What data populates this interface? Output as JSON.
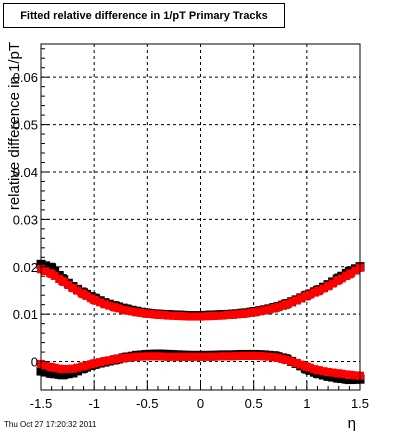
{
  "title": "Fitted relative difference in 1/pT  Primary Tracks",
  "timestamp": "Thu Oct 27 17:20:32 2011",
  "chart_data": {
    "type": "scatter",
    "title": "Fitted relative difference in 1/pT  Primary Tracks",
    "xlabel": "η",
    "ylabel": "relative difference in 1/pT",
    "xlim": [
      -1.5,
      1.5
    ],
    "ylim": [
      -0.006,
      0.067
    ],
    "grid": true,
    "x_ticks": [
      -1.5,
      -1,
      -0.5,
      0,
      0.5,
      1,
      1.5
    ],
    "x_tick_labels": [
      "-1.5",
      "-1",
      "-0.5",
      "0",
      "0.5",
      "1",
      "1.5"
    ],
    "y_ticks": [
      0,
      0.01,
      0.02,
      0.03,
      0.04,
      0.05,
      0.06
    ],
    "y_tick_labels": [
      "0",
      "0.01",
      "0.02",
      "0.03",
      "0.04",
      "0.05",
      "0.06"
    ],
    "series": [
      {
        "color": "#000000",
        "x": [
          -1.5,
          -1.4,
          -1.3,
          -1.2,
          -1.1,
          -1.0,
          -0.9,
          -0.8,
          -0.7,
          -0.6,
          -0.5,
          -0.4,
          -0.3,
          -0.2,
          -0.1,
          0.0,
          0.1,
          0.2,
          0.3,
          0.4,
          0.5,
          0.6,
          0.7,
          0.8,
          0.9,
          1.0,
          1.1,
          1.2,
          1.3,
          1.4,
          1.5
        ],
        "y": [
          0.0205,
          0.0198,
          0.0175,
          0.0158,
          0.0145,
          0.0134,
          0.0124,
          0.0117,
          0.0111,
          0.0106,
          0.0102,
          0.01,
          0.0099,
          0.0098,
          0.0097,
          0.0097,
          0.0098,
          0.0099,
          0.01,
          0.0102,
          0.0105,
          0.0109,
          0.0114,
          0.0121,
          0.013,
          0.014,
          0.015,
          0.0162,
          0.0176,
          0.019,
          0.02
        ]
      },
      {
        "color": "#ff0000",
        "x": [
          -1.5,
          -1.4,
          -1.3,
          -1.2,
          -1.1,
          -1.0,
          -0.9,
          -0.8,
          -0.7,
          -0.6,
          -0.5,
          -0.4,
          -0.3,
          -0.2,
          -0.1,
          0.0,
          0.1,
          0.2,
          0.3,
          0.4,
          0.5,
          0.6,
          0.7,
          0.8,
          0.9,
          1.0,
          1.1,
          1.2,
          1.3,
          1.4,
          1.5
        ],
        "y": [
          0.0195,
          0.0185,
          0.017,
          0.0155,
          0.0142,
          0.013,
          0.0121,
          0.0114,
          0.0108,
          0.0104,
          0.0101,
          0.0099,
          0.0097,
          0.0096,
          0.0095,
          0.0095,
          0.0096,
          0.0097,
          0.0099,
          0.0101,
          0.0104,
          0.0108,
          0.0113,
          0.012,
          0.0129,
          0.0139,
          0.0148,
          0.0159,
          0.0172,
          0.0184,
          0.0198
        ]
      },
      {
        "color": "#000000",
        "x": [
          -1.5,
          -1.4,
          -1.3,
          -1.2,
          -1.1,
          -1.0,
          -0.9,
          -0.8,
          -0.7,
          -0.6,
          -0.5,
          -0.4,
          -0.3,
          -0.2,
          -0.1,
          0.0,
          0.1,
          0.2,
          0.3,
          0.4,
          0.5,
          0.6,
          0.7,
          0.8,
          0.9,
          1.0,
          1.1,
          1.2,
          1.3,
          1.4,
          1.5
        ],
        "y": [
          -0.002,
          -0.0025,
          -0.0028,
          -0.0024,
          -0.0014,
          -0.0006,
          -0.0001,
          0.0004,
          0.0009,
          0.0013,
          0.0015,
          0.0016,
          0.0015,
          0.0014,
          0.0013,
          0.0013,
          0.0013,
          0.0014,
          0.0014,
          0.0015,
          0.0015,
          0.0014,
          0.0012,
          0.0006,
          -0.0004,
          -0.0016,
          -0.0025,
          -0.0031,
          -0.0035,
          -0.0038,
          -0.0037
        ]
      },
      {
        "color": "#ff0000",
        "x": [
          -1.5,
          -1.4,
          -1.3,
          -1.2,
          -1.1,
          -1.0,
          -0.9,
          -0.8,
          -0.7,
          -0.6,
          -0.5,
          -0.4,
          -0.3,
          -0.2,
          -0.1,
          0.0,
          0.1,
          0.2,
          0.3,
          0.4,
          0.5,
          0.6,
          0.7,
          0.8,
          0.9,
          1.0,
          1.1,
          1.2,
          1.3,
          1.4,
          1.5
        ],
        "y": [
          -0.0005,
          -0.0012,
          -0.0016,
          -0.0015,
          -0.001,
          -0.0004,
          0.0001,
          0.0005,
          0.0008,
          0.001,
          0.0011,
          0.0011,
          0.001,
          0.001,
          0.001,
          0.001,
          0.001,
          0.0011,
          0.0011,
          0.0012,
          0.0012,
          0.0011,
          0.0009,
          0.0004,
          -0.0003,
          -0.0011,
          -0.0018,
          -0.0022,
          -0.0025,
          -0.0028,
          -0.003
        ]
      }
    ]
  }
}
